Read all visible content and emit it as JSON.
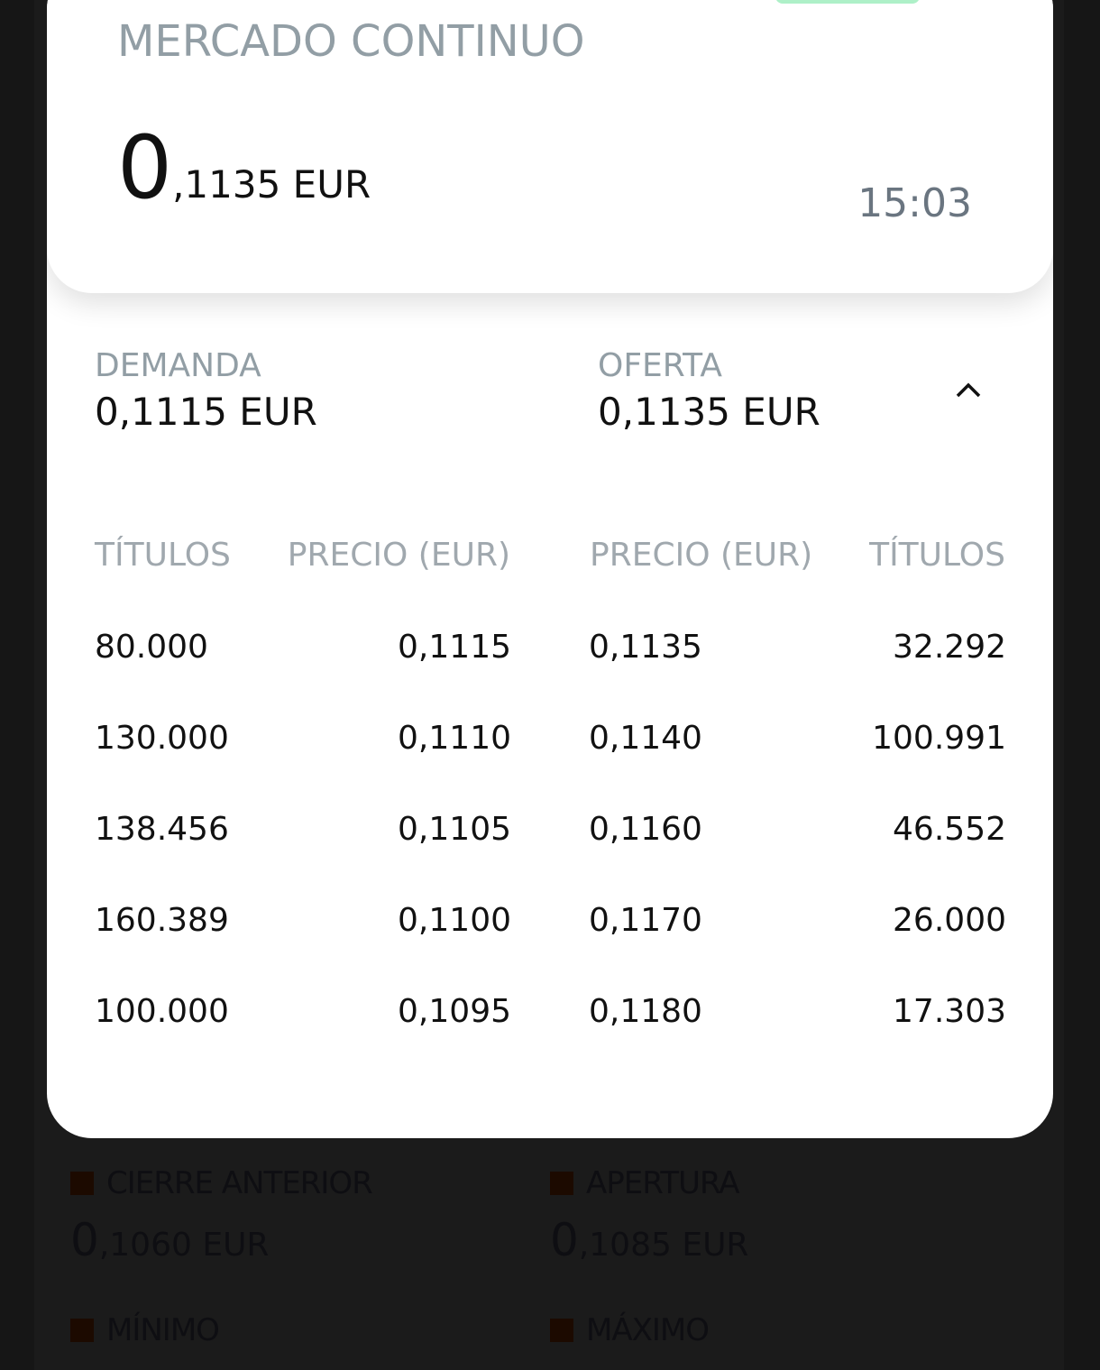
{
  "header": {
    "market": "MERCADO CONTINUO",
    "price_int": "0",
    "price_rest": ",1135 EUR",
    "time": "15:03"
  },
  "summary": {
    "bid_label": "DEMANDA",
    "bid_value": "0,1115 EUR",
    "ask_label": "OFERTA",
    "ask_value": "0,1135 EUR",
    "toggle_icon": "chevron-up-icon"
  },
  "book": {
    "headers": [
      "TÍTULOS",
      "PRECIO (EUR)",
      "PRECIO (EUR)",
      "TÍTULOS"
    ],
    "rows": [
      [
        "80.000",
        "0,1115",
        "0,1135",
        "32.292"
      ],
      [
        "130.000",
        "0,1110",
        "0,1140",
        "100.991"
      ],
      [
        "138.456",
        "0,1105",
        "0,1160",
        "46.552"
      ],
      [
        "160.389",
        "0,1100",
        "0,1170",
        "26.000"
      ],
      [
        "100.000",
        "0,1095",
        "0,1180",
        "17.303"
      ]
    ]
  },
  "background_stats": [
    {
      "label": "CIERRE ANTERIOR",
      "int": "0",
      "rest": ",1060 EUR"
    },
    {
      "label": "APERTURA",
      "int": "0",
      "rest": ",1085 EUR"
    },
    {
      "label": "MÍNIMO"
    },
    {
      "label": "MÁXIMO"
    }
  ],
  "colors": {
    "accent_green": "#aef0c8",
    "marker": "#1c0a00"
  }
}
